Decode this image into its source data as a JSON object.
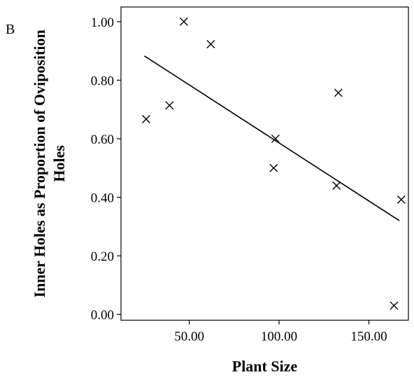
{
  "panel_label": "B",
  "chart_data": {
    "type": "scatter",
    "title": "",
    "xlabel": "Plant Size",
    "ylabel_line1": "Inner Holes as Proportion of Oviposition",
    "ylabel_line2": "Holes",
    "xlim": [
      12,
      172
    ],
    "ylim": [
      -0.02,
      1.05
    ],
    "x_ticks": [
      50,
      100,
      150
    ],
    "x_tick_labels": [
      "50.00",
      "100.00",
      "150.00"
    ],
    "y_ticks": [
      0,
      0.2,
      0.4,
      0.6,
      0.8,
      1.0
    ],
    "y_tick_labels": [
      "0.00",
      "0.20",
      "0.40",
      "0.60",
      "0.80",
      "1.00"
    ],
    "grid": false,
    "marker": "x",
    "points": [
      {
        "x": 26,
        "y": 0.667
      },
      {
        "x": 39,
        "y": 0.714
      },
      {
        "x": 47,
        "y": 1.0
      },
      {
        "x": 62,
        "y": 0.923
      },
      {
        "x": 97,
        "y": 0.5
      },
      {
        "x": 98,
        "y": 0.6
      },
      {
        "x": 132,
        "y": 0.44
      },
      {
        "x": 133,
        "y": 0.757
      },
      {
        "x": 164,
        "y": 0.03
      },
      {
        "x": 168,
        "y": 0.392
      }
    ],
    "fit_line": {
      "x": [
        25,
        167
      ],
      "y": [
        0.883,
        0.32
      ]
    }
  }
}
